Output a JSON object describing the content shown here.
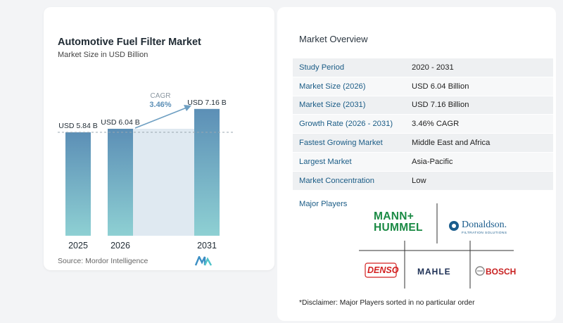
{
  "chart_data": {
    "type": "bar",
    "title": "Automotive Fuel Filter Market",
    "subtitle": "Market Size in USD Billion",
    "categories": [
      "2025",
      "2026",
      "2031"
    ],
    "values": [
      5.84,
      6.04,
      7.16
    ],
    "data_labels": [
      "USD 5.84 B",
      "USD 6.04 B",
      "USD 7.16 B"
    ],
    "cagr_label": "CAGR",
    "cagr_value": "3.46%",
    "colors": {
      "bar_top": "#5c8fb6",
      "bar_bottom": "#8ed0d3",
      "band": "#dfe9f1",
      "arrow": "#6e9fc2",
      "dashed": "#9aa7b0"
    },
    "source": "Source: Mordor Intelligence"
  },
  "overview": {
    "title": "Market Overview",
    "rows": [
      {
        "label": "Study Period",
        "value": "2020 - 2031"
      },
      {
        "label": "Market Size (2026)",
        "value": "USD 6.04 Billion"
      },
      {
        "label": "Market Size (2031)",
        "value": "USD 7.16 Billion"
      },
      {
        "label": "Growth Rate (2026 - 2031)",
        "value": "3.46% CAGR"
      },
      {
        "label": "Fastest Growing Market",
        "value": "Middle East and Africa"
      },
      {
        "label": "Largest Market",
        "value": "Asia-Pacific"
      },
      {
        "label": "Market Concentration",
        "value": "Low"
      }
    ],
    "players_label": "Major Players",
    "players": {
      "mann_line1": "MANN+",
      "mann_line2": "HUMMEL",
      "donaldson": "Donaldson.",
      "donaldson_sub": "FILTRATION SOLUTIONS",
      "denso": "DENSO",
      "mahle": "MAHLE",
      "bosch": "BOSCH"
    },
    "disclaimer": "*Disclaimer: Major Players sorted in no particular order"
  }
}
